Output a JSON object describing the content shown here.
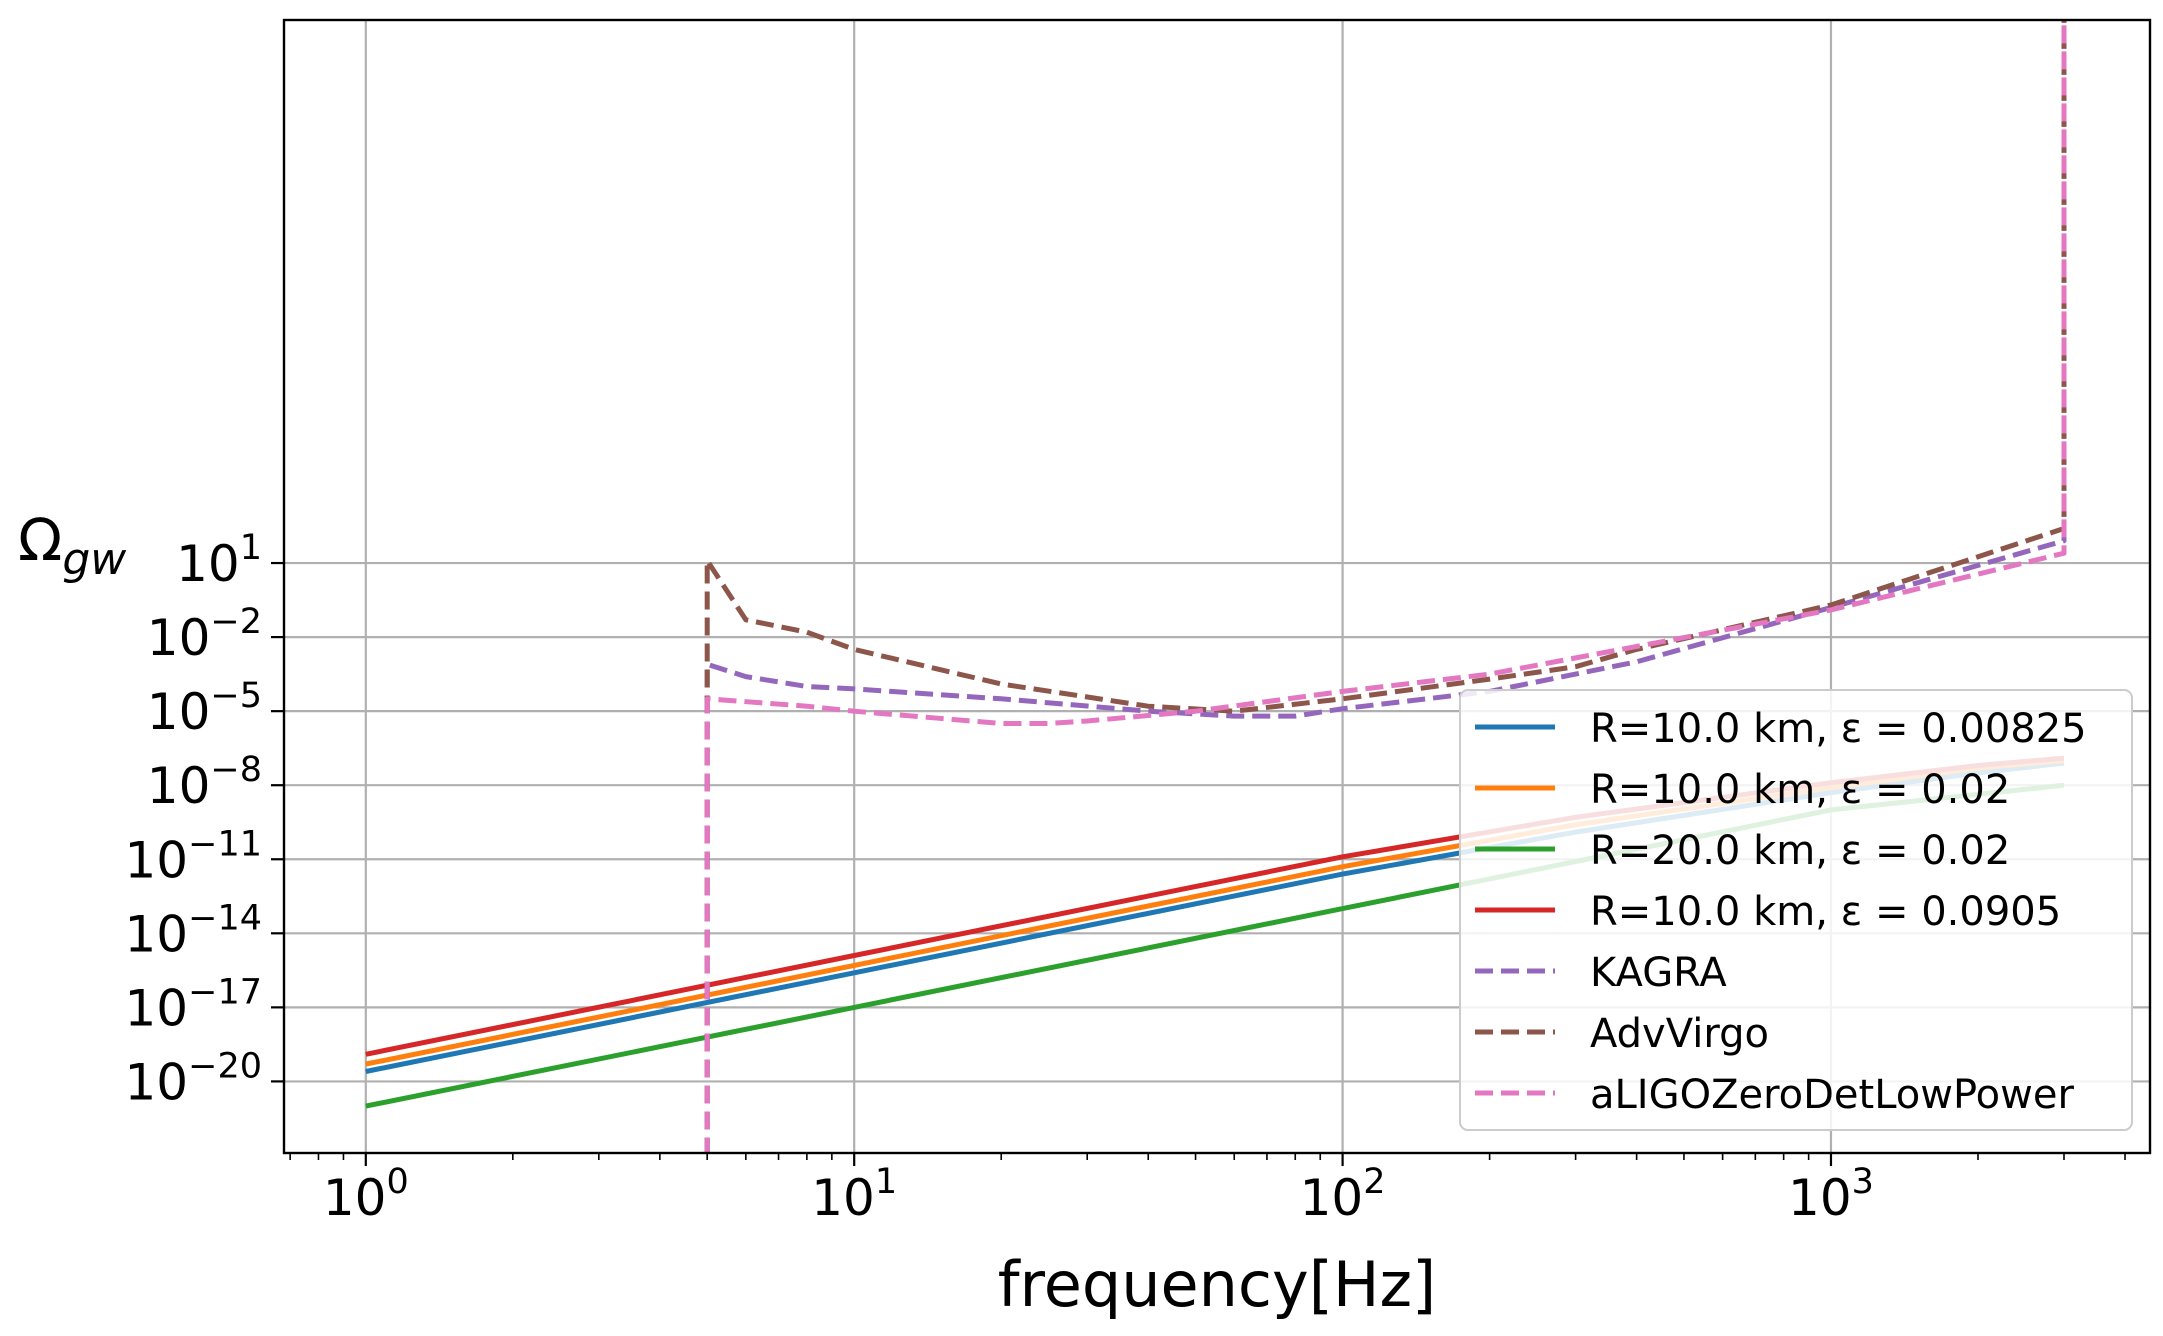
{
  "chart_data": {
    "type": "line",
    "xscale": "log",
    "yscale": "log",
    "xlabel": "frequency[Hz]",
    "ylabel_main": "Ω",
    "ylabel_sub": "gw",
    "xlim": [
      0.68,
      4500
    ],
    "ylim_log10": [
      -22.9,
      23.0
    ],
    "grid": true,
    "legend_position": "lower-right",
    "x_ticks": [
      {
        "exp": 0,
        "label_base": "10",
        "label_exp": "0"
      },
      {
        "exp": 1,
        "label_base": "10",
        "label_exp": "1"
      },
      {
        "exp": 2,
        "label_base": "10",
        "label_exp": "2"
      },
      {
        "exp": 3,
        "label_base": "10",
        "label_exp": "3"
      }
    ],
    "y_ticks": [
      {
        "exp": 1,
        "label_base": "10",
        "label_exp": "1"
      },
      {
        "exp": -2,
        "label_base": "10",
        "label_exp": "−2"
      },
      {
        "exp": -5,
        "label_base": "10",
        "label_exp": "−5"
      },
      {
        "exp": -8,
        "label_base": "10",
        "label_exp": "−8"
      },
      {
        "exp": -11,
        "label_base": "10",
        "label_exp": "−11"
      },
      {
        "exp": -14,
        "label_base": "10",
        "label_exp": "−14"
      },
      {
        "exp": -17,
        "label_base": "10",
        "label_exp": "−17"
      },
      {
        "exp": -20,
        "label_base": "10",
        "label_exp": "−20"
      }
    ],
    "series": [
      {
        "name": "R=10.0 km, ε = 0.00825",
        "color": "#1f77b4",
        "style": "solid",
        "x": [
          1,
          10,
          100,
          300,
          1000,
          2000,
          3000
        ],
        "log10_y": [
          -19.6,
          -15.6,
          -11.6,
          -9.9,
          -8.3,
          -7.5,
          -7.1
        ]
      },
      {
        "name": "R=10.0 km, ε = 0.02",
        "color": "#ff7f0e",
        "style": "solid",
        "x": [
          1,
          10,
          100,
          300,
          1000,
          2000,
          3000
        ],
        "log10_y": [
          -19.3,
          -15.3,
          -11.3,
          -9.6,
          -8.1,
          -7.3,
          -7.0
        ]
      },
      {
        "name": "R=20.0 km, ε = 0.02",
        "color": "#2ca02c",
        "style": "solid",
        "x": [
          1,
          10,
          100,
          1000,
          3000
        ],
        "log10_y": [
          -21.0,
          -17.0,
          -13.0,
          -9.0,
          -8.0
        ]
      },
      {
        "name": "R=10.0 km, ε = 0.0905",
        "color": "#d62728",
        "style": "solid",
        "x": [
          1,
          10,
          100,
          300,
          1000,
          2000,
          3000
        ],
        "log10_y": [
          -18.9,
          -14.9,
          -10.9,
          -9.3,
          -7.9,
          -7.2,
          -6.9
        ]
      },
      {
        "name": "KAGRA",
        "color": "#9467bd",
        "style": "dashed",
        "x": [
          5,
          5,
          6,
          8,
          10,
          20,
          40,
          60,
          80,
          100,
          200,
          400,
          1000,
          3000,
          3000
        ],
        "log10_y": [
          -23.0,
          -3.1,
          -3.6,
          -4.0,
          -4.1,
          -4.5,
          -5.0,
          -5.2,
          -5.2,
          -4.9,
          -4.2,
          -3.0,
          -0.8,
          1.9,
          23.0
        ]
      },
      {
        "name": "AdvVirgo",
        "color": "#8c564b",
        "style": "dashed",
        "x": [
          5,
          5,
          6,
          8,
          10,
          20,
          40,
          60,
          100,
          200,
          300,
          400,
          1000,
          3000,
          3000
        ],
        "log10_y": [
          -23.0,
          1.1,
          -1.3,
          -1.8,
          -2.5,
          -3.9,
          -4.8,
          -5.0,
          -4.5,
          -3.7,
          -3.2,
          -2.5,
          -0.7,
          2.4,
          23.0
        ]
      },
      {
        "name": "aLIGOZeroDetLowPower",
        "color": "#e377c2",
        "style": "dashed",
        "x": [
          5,
          5,
          8,
          10,
          20,
          25,
          30,
          50,
          100,
          200,
          1000,
          3000,
          3000
        ],
        "log10_y": [
          -23.0,
          -4.5,
          -4.8,
          -5.0,
          -5.5,
          -5.5,
          -5.4,
          -5.0,
          -4.2,
          -3.5,
          -0.9,
          1.4,
          23.0
        ]
      }
    ]
  }
}
